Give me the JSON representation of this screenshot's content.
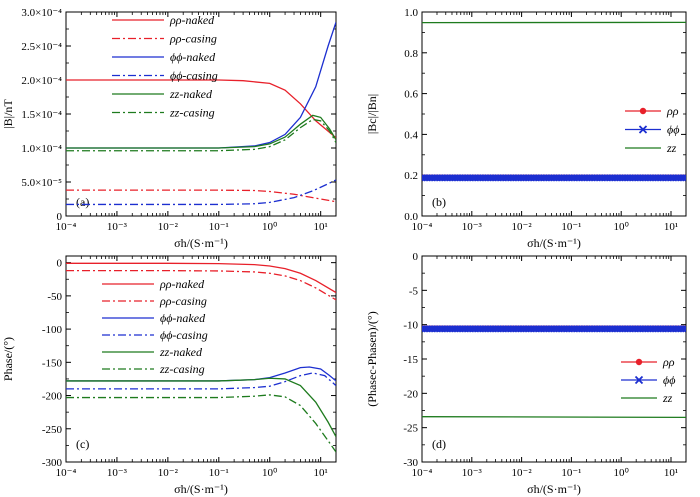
{
  "chart_data": [
    {
      "id": "a",
      "type": "line",
      "panel_label": "(a)",
      "xlabel": "σh/(S·m⁻¹)",
      "ylabel": "|B|/nT",
      "xscale": "log",
      "xlim": [
        0.0001,
        20
      ],
      "xticks": [
        0.0001,
        0.001,
        0.01,
        0.1,
        1,
        10
      ],
      "xtick_labels": [
        "10⁻⁴",
        "10⁻³",
        "10⁻²",
        "10⁻¹",
        "10⁰",
        "10¹"
      ],
      "ylim": [
        0,
        0.0003
      ],
      "yticks": [
        0,
        5e-05,
        0.0001,
        0.00015,
        0.0002,
        0.00025,
        0.0003
      ],
      "ytick_labels": [
        "0",
        "5.0×10⁻⁵",
        "1.0×10⁻⁴",
        "1.5×10⁻⁴",
        "2.0×10⁻⁴",
        "2.5×10⁻⁴",
        "3.0×10⁻⁴"
      ],
      "legend_position": "top-center",
      "series": [
        {
          "name": "ρρ-naked",
          "color": "#e8202a",
          "dash": "solid",
          "x": [
            0.0001,
            0.01,
            0.1,
            0.3,
            1,
            2,
            4,
            8,
            20
          ],
          "y": [
            0.0002,
            0.0002,
            0.0002,
            0.000199,
            0.000195,
            0.000185,
            0.000165,
            0.00014,
            0.000115
          ]
        },
        {
          "name": "ρρ-casing",
          "color": "#e8202a",
          "dash": "dashdot",
          "x": [
            0.0001,
            0.1,
            0.5,
            1,
            3,
            7,
            20
          ],
          "y": [
            3.8e-05,
            3.8e-05,
            3.75e-05,
            3.6e-05,
            3.2e-05,
            2.7e-05,
            2.1e-05
          ]
        },
        {
          "name": "ϕϕ-naked",
          "color": "#1c2fd0",
          "dash": "solid",
          "x": [
            0.0001,
            0.1,
            0.5,
            1,
            2,
            4,
            8,
            14,
            20
          ],
          "y": [
            0.0001,
            0.0001,
            0.000103,
            0.000108,
            0.00012,
            0.000145,
            0.00019,
            0.00025,
            0.000285
          ]
        },
        {
          "name": "ϕϕ-casing",
          "color": "#1c2fd0",
          "dash": "dashdot",
          "x": [
            0.0001,
            0.1,
            0.5,
            1,
            3,
            7,
            12,
            20
          ],
          "y": [
            1.7e-05,
            1.7e-05,
            1.8e-05,
            2e-05,
            2.7e-05,
            3.7e-05,
            4.5e-05,
            5.3e-05
          ]
        },
        {
          "name": "zz-naked",
          "color": "#1e7b1e",
          "dash": "solid",
          "x": [
            0.0001,
            0.1,
            0.5,
            1,
            2,
            4,
            7,
            10,
            15,
            20
          ],
          "y": [
            0.0001,
            0.0001,
            0.000102,
            0.000106,
            0.000116,
            0.000135,
            0.000148,
            0.000145,
            0.000128,
            0.000112
          ]
        },
        {
          "name": "zz-casing",
          "color": "#1e7b1e",
          "dash": "dashdot",
          "x": [
            0.0001,
            0.1,
            0.5,
            1,
            2,
            4,
            7,
            10,
            15,
            20
          ],
          "y": [
            9.6e-05,
            9.6e-05,
            9.8e-05,
            0.000102,
            0.000112,
            0.00013,
            0.000142,
            0.00014,
            0.000125,
            0.000108
          ]
        }
      ]
    },
    {
      "id": "b",
      "type": "line",
      "panel_label": "(b)",
      "xlabel": "σh/(S·m⁻¹)",
      "ylabel": "|Bc|/|Bn|",
      "xscale": "log",
      "xlim": [
        0.0001,
        20
      ],
      "xticks": [
        0.0001,
        0.001,
        0.01,
        0.1,
        1,
        10
      ],
      "xtick_labels": [
        "10⁻⁴",
        "10⁻³",
        "10⁻²",
        "10⁻¹",
        "10⁰",
        "10¹"
      ],
      "ylim": [
        0,
        1
      ],
      "yticks": [
        0,
        0.2,
        0.4,
        0.6,
        0.8,
        1.0
      ],
      "ytick_labels": [
        "0.0",
        "0.2",
        "0.4",
        "0.6",
        "0.8",
        "1.0"
      ],
      "legend_position": "center-right",
      "series": [
        {
          "name": "ρρ",
          "color": "#e8202a",
          "dash": "solid",
          "marker": "circle",
          "x": [
            0.0001,
            20
          ],
          "y": [
            0.19,
            0.19
          ]
        },
        {
          "name": "ϕϕ",
          "color": "#1c2fd0",
          "dash": "solid",
          "marker": "cross",
          "x": [
            0.0001,
            20
          ],
          "y": [
            0.187,
            0.187
          ]
        },
        {
          "name": "zz",
          "color": "#1e7b1e",
          "dash": "solid",
          "x": [
            0.0001,
            20
          ],
          "y": [
            0.948,
            0.949
          ]
        }
      ]
    },
    {
      "id": "c",
      "type": "line",
      "panel_label": "(c)",
      "xlabel": "σh/(S·m⁻¹)",
      "ylabel": "Phase/(°)",
      "xscale": "log",
      "xlim": [
        0.0001,
        20
      ],
      "xticks": [
        0.0001,
        0.001,
        0.01,
        0.1,
        1,
        10
      ],
      "xtick_labels": [
        "10⁻⁴",
        "10⁻³",
        "10⁻²",
        "10⁻¹",
        "10⁰",
        "10¹"
      ],
      "ylim": [
        -300,
        10
      ],
      "yticks": [
        0,
        -50,
        -100,
        -150,
        -200,
        -250,
        -300
      ],
      "ytick_labels": [
        "0",
        "-50",
        "-100",
        "-150",
        "-200",
        "-250",
        "-300"
      ],
      "legend_position": "top-center",
      "series": [
        {
          "name": "ρρ-naked",
          "color": "#e8202a",
          "dash": "solid",
          "x": [
            0.0001,
            0.01,
            0.1,
            0.5,
            1,
            2,
            4,
            8,
            20
          ],
          "y": [
            -1,
            -1,
            -1.5,
            -3,
            -5,
            -9,
            -16,
            -27,
            -45
          ]
        },
        {
          "name": "ρρ-casing",
          "color": "#e8202a",
          "dash": "dashdot",
          "x": [
            0.0001,
            0.01,
            0.1,
            0.5,
            1,
            2,
            4,
            8,
            20
          ],
          "y": [
            -12,
            -12,
            -12.5,
            -14,
            -16,
            -20,
            -27,
            -38,
            -56
          ]
        },
        {
          "name": "ϕϕ-naked",
          "color": "#1c2fd0",
          "dash": "solid",
          "x": [
            0.0001,
            0.1,
            0.5,
            1,
            2,
            4,
            6,
            10,
            15,
            20
          ],
          "y": [
            -178,
            -178,
            -176,
            -173,
            -166,
            -158,
            -157,
            -160,
            -170,
            -178
          ]
        },
        {
          "name": "ϕϕ-casing",
          "color": "#1c2fd0",
          "dash": "dashdot",
          "x": [
            0.0001,
            0.1,
            0.5,
            1,
            2,
            4,
            7,
            12,
            20
          ],
          "y": [
            -190,
            -190,
            -188,
            -186,
            -179,
            -170,
            -166,
            -170,
            -185
          ]
        },
        {
          "name": "zz-naked",
          "color": "#1e7b1e",
          "dash": "solid",
          "x": [
            0.0001,
            0.1,
            0.5,
            1,
            2,
            4,
            8,
            14,
            20
          ],
          "y": [
            -178,
            -178,
            -176,
            -174,
            -175,
            -185,
            -210,
            -240,
            -262
          ]
        },
        {
          "name": "zz-casing",
          "color": "#1e7b1e",
          "dash": "dashdot",
          "x": [
            0.0001,
            0.1,
            0.5,
            1,
            2,
            4,
            8,
            14,
            20
          ],
          "y": [
            -203,
            -203,
            -201,
            -199,
            -202,
            -215,
            -242,
            -268,
            -285
          ]
        }
      ]
    },
    {
      "id": "d",
      "type": "line",
      "panel_label": "(d)",
      "xlabel": "σh/(S·m⁻¹)",
      "ylabel": "(Phasec-Phasen)/(°)",
      "xscale": "log",
      "xlim": [
        0.0001,
        20
      ],
      "xticks": [
        0.0001,
        0.001,
        0.01,
        0.1,
        1,
        10
      ],
      "xtick_labels": [
        "10⁻⁴",
        "10⁻³",
        "10⁻²",
        "10⁻¹",
        "10⁰",
        "10¹"
      ],
      "ylim": [
        -30,
        0
      ],
      "yticks": [
        0,
        -5,
        -10,
        -15,
        -20,
        -25,
        -30
      ],
      "ytick_labels": [
        "0",
        "-5",
        "-10",
        "-15",
        "-20",
        "-25",
        "-30"
      ],
      "legend_position": "center-right",
      "series": [
        {
          "name": "ρρ",
          "color": "#e8202a",
          "dash": "solid",
          "marker": "circle",
          "x": [
            0.0001,
            20
          ],
          "y": [
            -10.5,
            -10.5
          ]
        },
        {
          "name": "ϕϕ",
          "color": "#1c2fd0",
          "dash": "solid",
          "marker": "cross",
          "x": [
            0.0001,
            20
          ],
          "y": [
            -10.6,
            -10.6
          ]
        },
        {
          "name": "zz",
          "color": "#1e7b1e",
          "dash": "solid",
          "x": [
            0.0001,
            20
          ],
          "y": [
            -23.4,
            -23.5
          ]
        }
      ]
    }
  ]
}
